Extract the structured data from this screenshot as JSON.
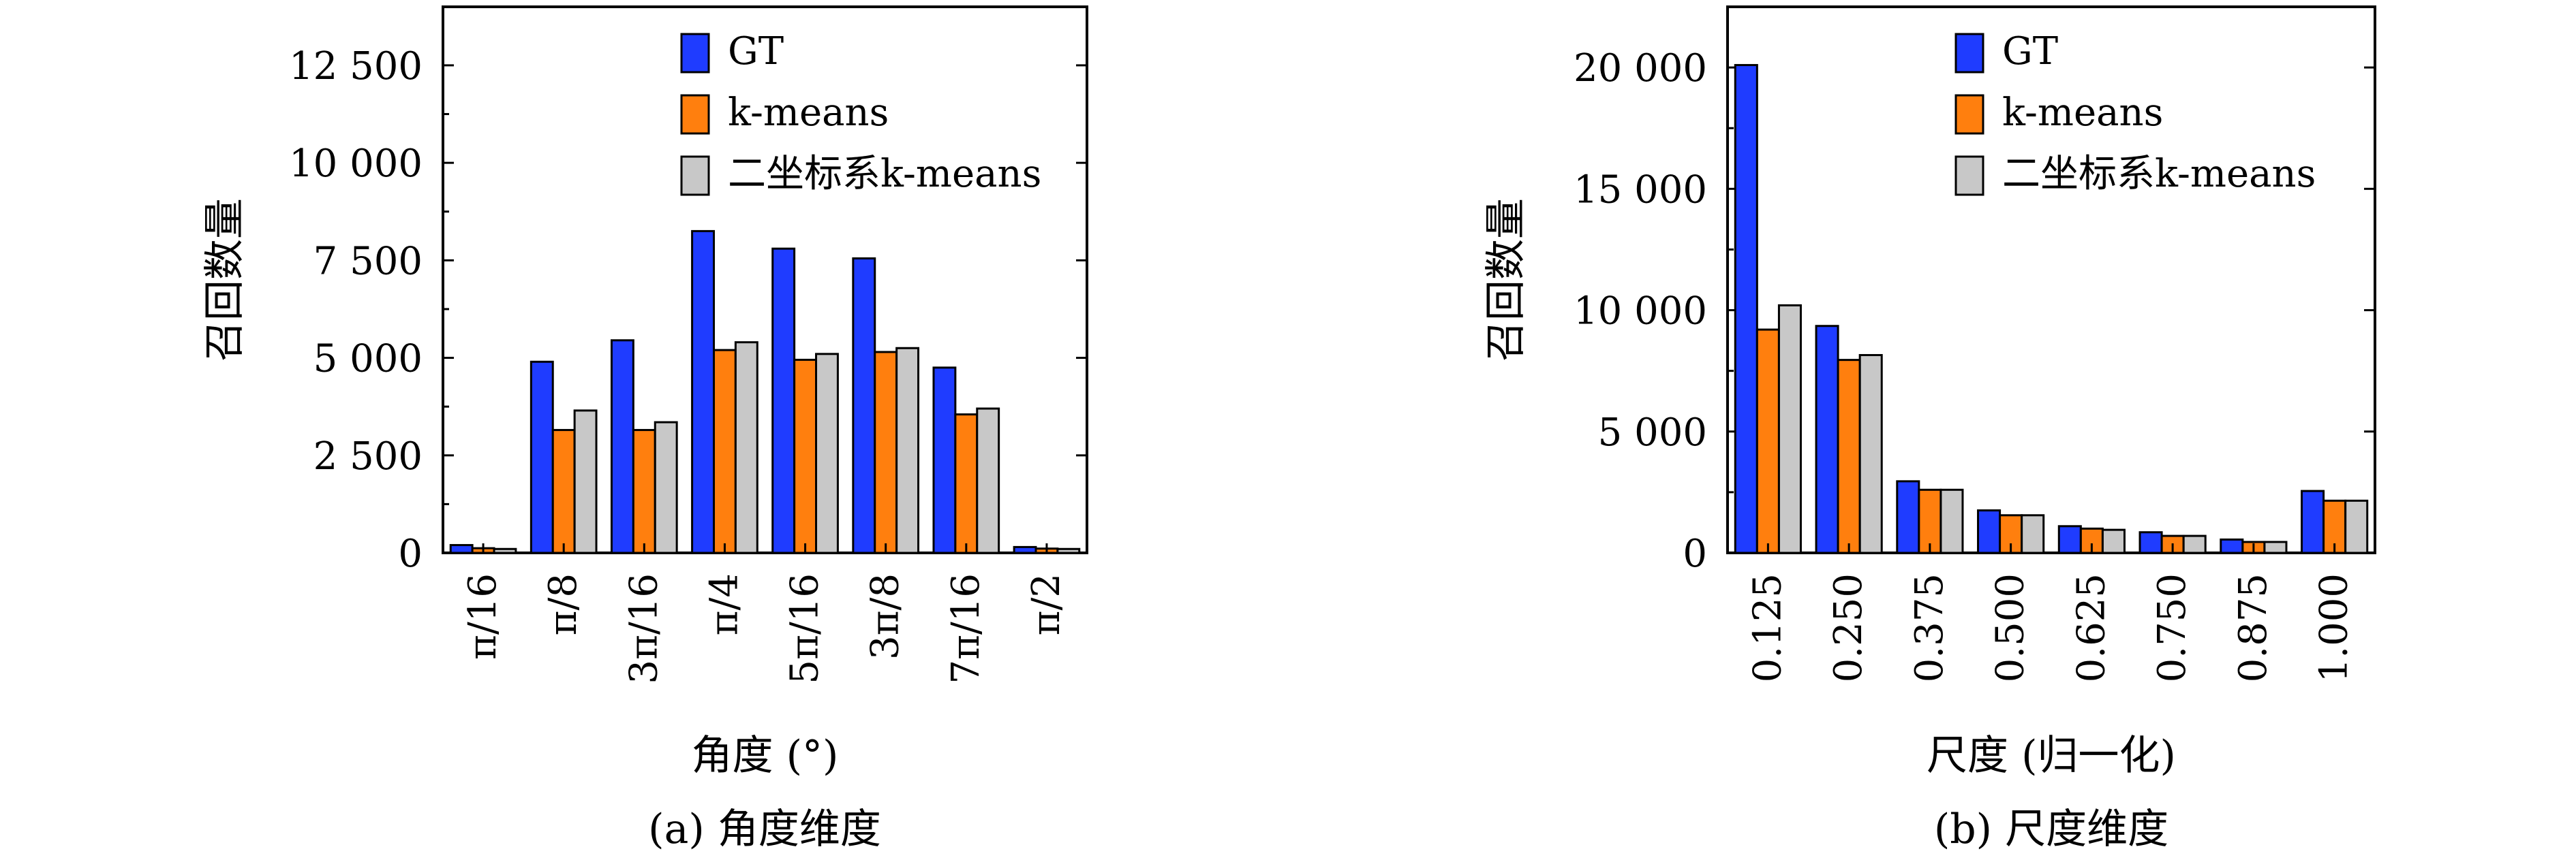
{
  "colors": {
    "GT": "#1f3cff",
    "k-means": "#ff7f0e",
    "二坐标系k-means": "#c8c8c8"
  },
  "chart_data": [
    {
      "type": "bar",
      "caption": "(a) 角度维度",
      "xlabel": "角度 (°)",
      "ylabel": "召回数量",
      "ylim": [
        0,
        14000
      ],
      "yticks": [
        0,
        2500,
        5000,
        7500,
        10000,
        12500
      ],
      "ytick_labels": [
        "0",
        "2 500",
        "5 000",
        "7 500",
        "10 000",
        "12 500"
      ],
      "categories": [
        "π/16",
        "π/8",
        "3π/16",
        "π/4",
        "5π/16",
        "3π/8",
        "7π/16",
        "π/2"
      ],
      "legend": [
        "GT",
        "k-means",
        "二坐标系k-means"
      ],
      "legend_position": "top-center",
      "series": [
        {
          "name": "GT",
          "values": [
            200,
            4900,
            5450,
            8250,
            7800,
            7550,
            4750,
            150
          ]
        },
        {
          "name": "k-means",
          "values": [
            120,
            3150,
            3150,
            5200,
            4950,
            5150,
            3550,
            110
          ]
        },
        {
          "name": "二坐标系k-means",
          "values": [
            100,
            3650,
            3350,
            5400,
            5100,
            5250,
            3700,
            100
          ]
        }
      ]
    },
    {
      "type": "bar",
      "caption": "(b) 尺度维度",
      "xlabel": "尺度 (归一化)",
      "ylabel": "召回数量",
      "ylim": [
        0,
        22500
      ],
      "yticks": [
        0,
        5000,
        10000,
        15000,
        20000
      ],
      "ytick_labels": [
        "0",
        "5 000",
        "10 000",
        "15 000",
        "20 000"
      ],
      "categories": [
        "0.125",
        "0.250",
        "0.375",
        "0.500",
        "0.625",
        "0.750",
        "0.875",
        "1.000"
      ],
      "legend": [
        "GT",
        "k-means",
        "二坐标系k-means"
      ],
      "legend_position": "top-center",
      "series": [
        {
          "name": "GT",
          "values": [
            20100,
            9350,
            2950,
            1750,
            1100,
            850,
            550,
            2550
          ]
        },
        {
          "name": "k-means",
          "values": [
            9200,
            7950,
            2600,
            1550,
            1000,
            700,
            450,
            2150
          ]
        },
        {
          "name": "二坐标系k-means",
          "values": [
            10200,
            8150,
            2600,
            1550,
            950,
            700,
            450,
            2150
          ]
        }
      ]
    }
  ]
}
